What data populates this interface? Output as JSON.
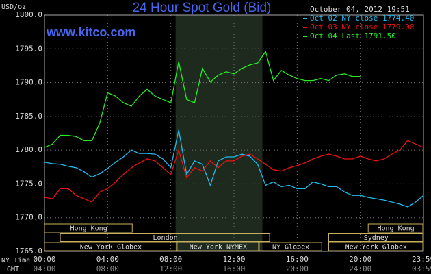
{
  "chart_data": {
    "type": "line",
    "title": "24 Hour Spot Gold (Bid)",
    "source": "www.kitco.com",
    "timestamp": "October 04, 2012 19:51",
    "y_label": "USD/oz",
    "x_label": "NY Time",
    "x2_label": "GMT",
    "xlim": [
      0,
      24
    ],
    "ylim": [
      1765,
      1800
    ],
    "yticks": [
      {
        "value": 1765,
        "label": "1765.0"
      },
      {
        "value": 1770,
        "label": "1770.0"
      },
      {
        "value": 1775,
        "label": "1775.0"
      },
      {
        "value": 1780,
        "label": "1780.0"
      },
      {
        "value": 1785,
        "label": "1785.0"
      },
      {
        "value": 1790,
        "label": "1790.0"
      },
      {
        "value": 1795,
        "label": "1795.0"
      },
      {
        "value": 1800,
        "label": "1800.0"
      }
    ],
    "xticks": [
      {
        "value": 0,
        "label": "00:00"
      },
      {
        "value": 4,
        "label": "04:00"
      },
      {
        "value": 8,
        "label": "08:00"
      },
      {
        "value": 12,
        "label": "12:00"
      },
      {
        "value": 16,
        "label": "16:00"
      },
      {
        "value": 20,
        "label": "20:00"
      },
      {
        "value": 23.98,
        "label": "23:59"
      }
    ],
    "x2ticks": [
      {
        "value": 0,
        "label": "04:00"
      },
      {
        "value": 4,
        "label": "08:00"
      },
      {
        "value": 8,
        "label": "12:00"
      },
      {
        "value": 12,
        "label": "16:00"
      },
      {
        "value": 16,
        "label": "20:00"
      },
      {
        "value": 20,
        "label": "24:00"
      },
      {
        "value": 23.98,
        "label": "03:59"
      }
    ],
    "grid": true,
    "highlight_range": [
      8.3,
      13.8
    ],
    "sessions": [
      [
        {
          "label": "Hong Kong",
          "start": 0,
          "end": 5.6
        },
        {
          "label": "Hong Kong",
          "start": 20.5,
          "end": 24
        }
      ],
      [
        {
          "label": "London",
          "start": 1,
          "end": 14.3
        },
        {
          "label": "Sydney",
          "start": 18,
          "end": 24
        }
      ],
      [
        {
          "label": "New York Globex",
          "start": 0,
          "end": 8.4
        },
        {
          "label": "New York NYMEX",
          "start": 8.4,
          "end": 13.6
        },
        {
          "label": "NY Globex",
          "start": 13.6,
          "end": 17.6
        },
        {
          "label": "New York Globex",
          "start": 18,
          "end": 24
        }
      ]
    ],
    "x": [
      0,
      0.5,
      1,
      1.5,
      2,
      2.5,
      3,
      3.5,
      4,
      4.5,
      5,
      5.5,
      6,
      6.5,
      7,
      7.5,
      8,
      8.5,
      9,
      9.5,
      10,
      10.5,
      11,
      11.5,
      12,
      12.5,
      13,
      13.5,
      14,
      14.5,
      15,
      15.5,
      16,
      16.5,
      17,
      17.5,
      18,
      18.5,
      19,
      19.5,
      20,
      20.5,
      21,
      21.5,
      22,
      22.5,
      23,
      23.5,
      24
    ],
    "series": [
      {
        "name": "Oct 02 NY close 1774.40",
        "color": "#22bbee",
        "values": [
          1778.2,
          1778,
          1777.9,
          1777.6,
          1777.4,
          1776.8,
          1776,
          1776.5,
          1777.3,
          1778.2,
          1779,
          1780,
          1779.5,
          1779.5,
          1779.4,
          1778.7,
          1777.4,
          1783,
          1776.4,
          1778.4,
          1777.9,
          1774.8,
          1778.4,
          1779,
          1779,
          1779.4,
          1779.1,
          1777.9,
          1774.8,
          1775.3,
          1774.6,
          1774.8,
          1774.3,
          1774.3,
          1775.3,
          1775,
          1774.6,
          1774.6,
          1773.8,
          1773.3,
          1773.3,
          1773,
          1772.8,
          1772.6,
          1772.3,
          1772,
          1771.6,
          1772.3,
          1773.3
        ]
      },
      {
        "name": "Oct 03 NY close 1779.00",
        "color": "#ee1111",
        "values": [
          1773,
          1772.8,
          1774.3,
          1774.3,
          1773.3,
          1772.8,
          1772.3,
          1773.8,
          1774.3,
          1775.3,
          1776.4,
          1777.4,
          1778.1,
          1778.7,
          1778.4,
          1777.4,
          1776.4,
          1780,
          1775.9,
          1777.4,
          1776.9,
          1778.4,
          1777.4,
          1778.4,
          1778.4,
          1779.1,
          1779.4,
          1778.7,
          1777.9,
          1777.1,
          1776.9,
          1777.4,
          1777.7,
          1778.1,
          1778.7,
          1779.1,
          1779.4,
          1779.1,
          1778.7,
          1778.7,
          1779.1,
          1778.7,
          1778.4,
          1778.7,
          1779.4,
          1780,
          1781.4,
          1780.9,
          1780.4
        ]
      },
      {
        "name": "Oct 04 Last 1791.50",
        "color": "#22ee22",
        "values": [
          1780.4,
          1780.9,
          1782.2,
          1782.2,
          1782,
          1781.4,
          1781.4,
          1784,
          1788.5,
          1788,
          1787,
          1786.5,
          1788,
          1789,
          1788,
          1787.5,
          1787,
          1793.1,
          1787.5,
          1787,
          1792.1,
          1790.1,
          1791.1,
          1791.6,
          1791.3,
          1792.1,
          1792.6,
          1792.9,
          1794.6,
          1790.3,
          1791.8,
          1791.1,
          1790.6,
          1790.3,
          1790.3,
          1790.6,
          1790.3,
          1791.1,
          1791.3,
          1790.9,
          1790.9,
          null,
          null,
          null,
          null,
          null,
          null,
          null,
          null
        ]
      }
    ]
  }
}
